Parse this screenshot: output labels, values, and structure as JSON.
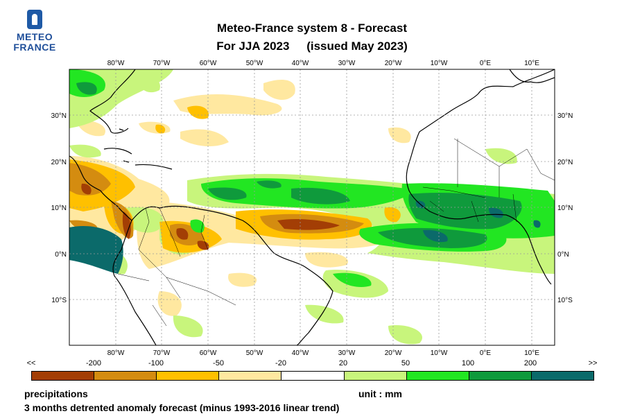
{
  "brand": {
    "line1": "METEO",
    "line2": "FRANCE",
    "color": "#1f4f9a"
  },
  "title": {
    "line1": "Meteo-France system 8  -  Forecast",
    "line2a": "For JJA 2023",
    "line2b": "(issued May 2023)"
  },
  "map": {
    "lon_ticks": [
      "80°W",
      "70°W",
      "60°W",
      "50°W",
      "40°W",
      "30°W",
      "20°W",
      "10°W",
      "0°E",
      "10°E"
    ],
    "lat_ticks": [
      "30°N",
      "20°N",
      "10°N",
      "0°N",
      "10°S"
    ]
  },
  "legend": {
    "labels": [
      "<<",
      "-200",
      "-100",
      "-50",
      "-20",
      "20",
      "50",
      "100",
      "200",
      ">>"
    ],
    "colors": [
      "#a33e05",
      "#d48c10",
      "#ffc000",
      "#ffe8a0",
      "#ffffff",
      "#c8f57c",
      "#22e622",
      "#0f9a3c",
      "#0b6a6a"
    ]
  },
  "footer": {
    "variable": "precipitations",
    "unit": "unit : mm",
    "description": "3 months detrented anomaly forecast (minus 1993-2016 linear trend)"
  }
}
